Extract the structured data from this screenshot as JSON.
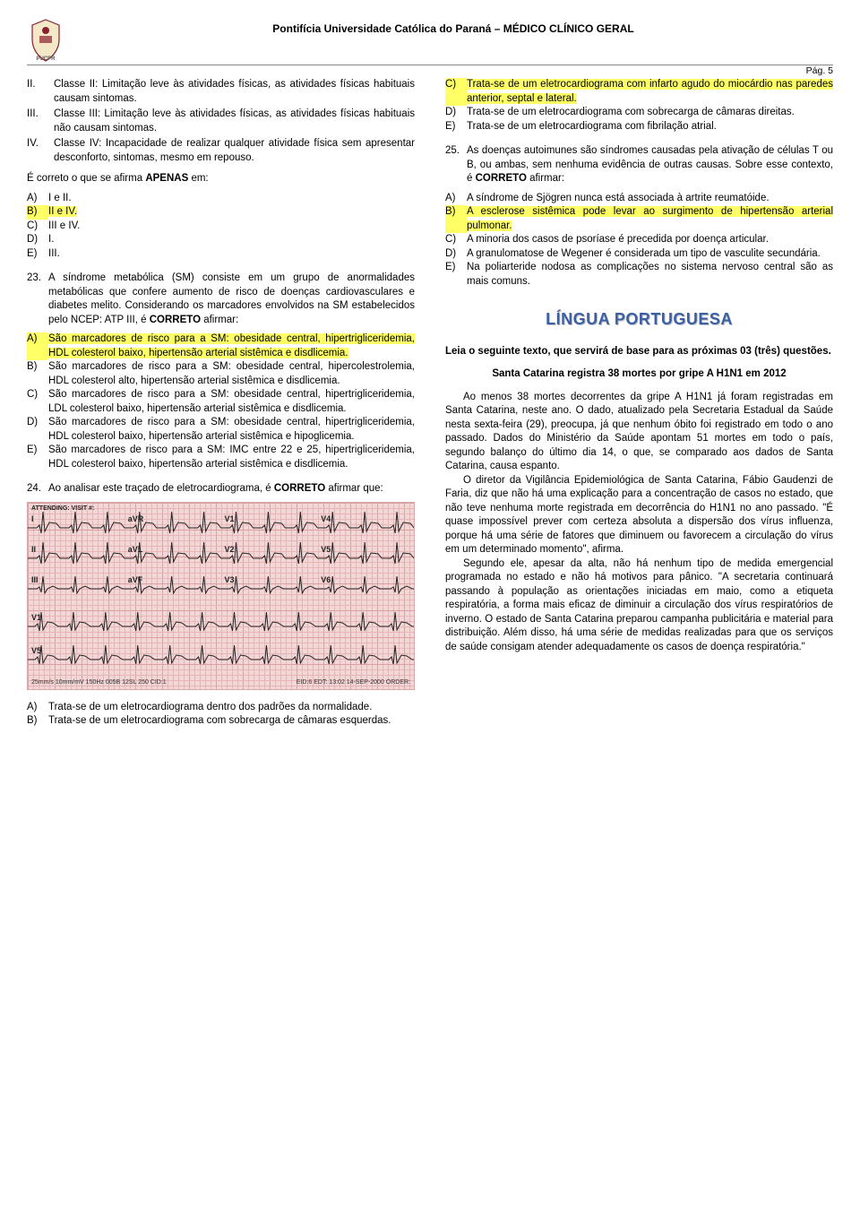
{
  "header": {
    "title": "Pontifícia Universidade Católica do Paraná – MÉDICO CLÍNICO GERAL",
    "page": "Pág. 5",
    "logo_color_top": "#8a1f2c",
    "logo_color_bottom": "#666666"
  },
  "left": {
    "roman_items": [
      {
        "marker": "II.",
        "text": "Classe II: Limitação leve às atividades físicas, as atividades físicas habituais causam sintomas."
      },
      {
        "marker": "III.",
        "text": "Classe III: Limitação leve às atividades físicas, as atividades físicas habituais não causam sintomas."
      },
      {
        "marker": "IV.",
        "text": "Classe IV: Incapacidade de realizar qualquer atividade física sem apresentar desconforto, sintomas, mesmo em repouso."
      }
    ],
    "stem22": "É correto o que se afirma APENAS em:",
    "stem22_bold_word": "APENAS",
    "ans22": [
      {
        "m": "A)",
        "t": "I e II.",
        "hl": false
      },
      {
        "m": "B)",
        "t": "II e IV.",
        "hl": true
      },
      {
        "m": "C)",
        "t": "III e IV.",
        "hl": false
      },
      {
        "m": "D)",
        "t": "I.",
        "hl": false
      },
      {
        "m": "E)",
        "t": "III.",
        "hl": false
      }
    ],
    "q23_n": "23.",
    "q23_t": "A síndrome metabólica (SM) consiste em um grupo de anormalidades metabólicas que confere aumento de risco de doenças cardiovasculares e diabetes melito. Considerando os marcadores envolvidos na SM estabelecidos pelo NCEP: ATP III, é CORRETO afirmar:",
    "q23_bold": "CORRETO",
    "ans23": [
      {
        "m": "A)",
        "t": "São marcadores de risco para a SM: obesidade central, hipertrigliceridemia, HDL colesterol baixo, hipertensão arterial sistêmica e disdlicemia.",
        "hl": true
      },
      {
        "m": "B)",
        "t": "São marcadores de risco para a SM: obesidade central, hipercolestrolemia, HDL colesterol alto, hipertensão arterial sistêmica e disdlicemia.",
        "hl": false
      },
      {
        "m": "C)",
        "t": "São marcadores de risco para a SM: obesidade central, hipertrigliceridemia, LDL colesterol baixo, hipertensão arterial sistêmica e disdlicemia.",
        "hl": false
      },
      {
        "m": "D)",
        "t": "São marcadores de risco para a SM: obesidade central, hipertrigliceridemia, HDL colesterol baixo, hipertensão arterial sistêmica e hipoglicemia.",
        "hl": false
      },
      {
        "m": "E)",
        "t": "São marcadores de risco para a SM: IMC entre 22 e 25, hipertrigliceridemia, HDL colesterol baixo, hipertensão arterial sistêmica e disdlicemia.",
        "hl": false
      }
    ],
    "q24_n": "24.",
    "q24_t": "Ao analisar este traçado de eletrocardiograma, é CORRETO afirmar que:",
    "q24_bold": "CORRETO",
    "ecg": {
      "bg": "#f5d6d6",
      "grid": "#e8b5b5",
      "trace": "#222222",
      "leads_row1": [
        "I",
        "aVR",
        "V1",
        "V4"
      ],
      "leads_row2": [
        "II",
        "aVL",
        "V2",
        "V5"
      ],
      "leads_row3": [
        "III",
        "aVF",
        "V3",
        "V6"
      ],
      "rhythm1": "V1",
      "rhythm2": "V5",
      "footer_left": "25mm/s  10mm/mV  150Hz  005B  12SL 250  CID:1",
      "footer_right": "EID:6 EDT: 13:02 14-SEP-2000 ORDER:"
    },
    "ans24_partial": [
      {
        "m": "A)",
        "t": "Trata-se de um eletrocardiograma dentro dos padrões da normalidade.",
        "hl": false
      },
      {
        "m": "B)",
        "t": "Trata-se de um eletrocardiograma com sobrecarga de câmaras esquerdas.",
        "hl": false
      }
    ]
  },
  "right": {
    "ans24_cont": [
      {
        "m": "C)",
        "t": "Trata-se de um eletrocardiograma com infarto agudo do miocárdio nas paredes anterior, septal e lateral.",
        "hl": true
      },
      {
        "m": "D)",
        "t": "Trata-se de um eletrocardiograma com sobrecarga de câmaras direitas.",
        "hl": false
      },
      {
        "m": "E)",
        "t": "Trata-se de um eletrocardiograma com fibrilação atrial.",
        "hl": false
      }
    ],
    "q25_n": "25.",
    "q25_t": "As doenças autoimunes são síndromes causadas pela ativação de células T ou B, ou ambas, sem nenhuma evidência de outras causas. Sobre esse contexto, é CORRETO afirmar:",
    "q25_bold": "CORRETO",
    "ans25": [
      {
        "m": "A)",
        "t": "A síndrome de Sjögren nunca está associada à artrite reumatóide.",
        "hl": false
      },
      {
        "m": "B)",
        "t": "A esclerose sistêmica pode levar ao surgimento de hipertensão arterial pulmonar.",
        "hl": true
      },
      {
        "m": "C)",
        "t": "A minoria dos casos de psoríase é precedida por doença articular.",
        "hl": false
      },
      {
        "m": "D)",
        "t": "A granulomatose de Wegener é considerada um tipo de vasculite secundária.",
        "hl": false
      },
      {
        "m": "E)",
        "t": "Na poliarteride nodosa as complicações no sistema nervoso central são as mais comuns.",
        "hl": false
      }
    ],
    "section_title": "LÍNGUA PORTUGUESA",
    "reading_intro": "Leia o seguinte texto, que servirá de base para as próximas 03 (três) questões.",
    "article_title": "Santa Catarina registra 38 mortes por gripe A H1N1 em 2012",
    "article_body": "Ao menos 38 mortes decorrentes da gripe A H1N1 já foram registradas em Santa Catarina, neste ano. O dado, atualizado pela Secretaria Estadual da Saúde nesta sexta-feira (29), preocupa, já que nenhum óbito foi registrado em todo o ano passado. Dados do Ministério da Saúde apontam 51 mortes em todo o país, segundo balanço do último dia 14, o que, se comparado aos dados de Santa Catarina, causa espanto.\nO diretor da Vigilância Epidemiológica de Santa Catarina, Fábio Gaudenzi de Faria, diz que não há uma explicação para a concentração de casos no estado, que não teve nenhuma morte registrada em decorrência do H1N1 no ano passado. \"É quase impossível prever com certeza absoluta a dispersão dos vírus influenza, porque há uma série de fatores que diminuem ou favorecem a circulação do vírus em um determinado momento\", afirma.\nSegundo ele, apesar da alta, não há nenhum tipo de medida emergencial programada no estado e não há motivos para pânico. \"A secretaria continuará passando à população as orientações iniciadas em maio, como a etiqueta respiratória, a forma mais eficaz de diminuir a circulação dos vírus respiratórios de inverno. O estado de Santa Catarina preparou campanha publicitária e material para distribuição. Além disso, há uma série de medidas realizadas para que os serviços de saúde consigam atender adequadamente os casos de doença respiratória.\""
  }
}
